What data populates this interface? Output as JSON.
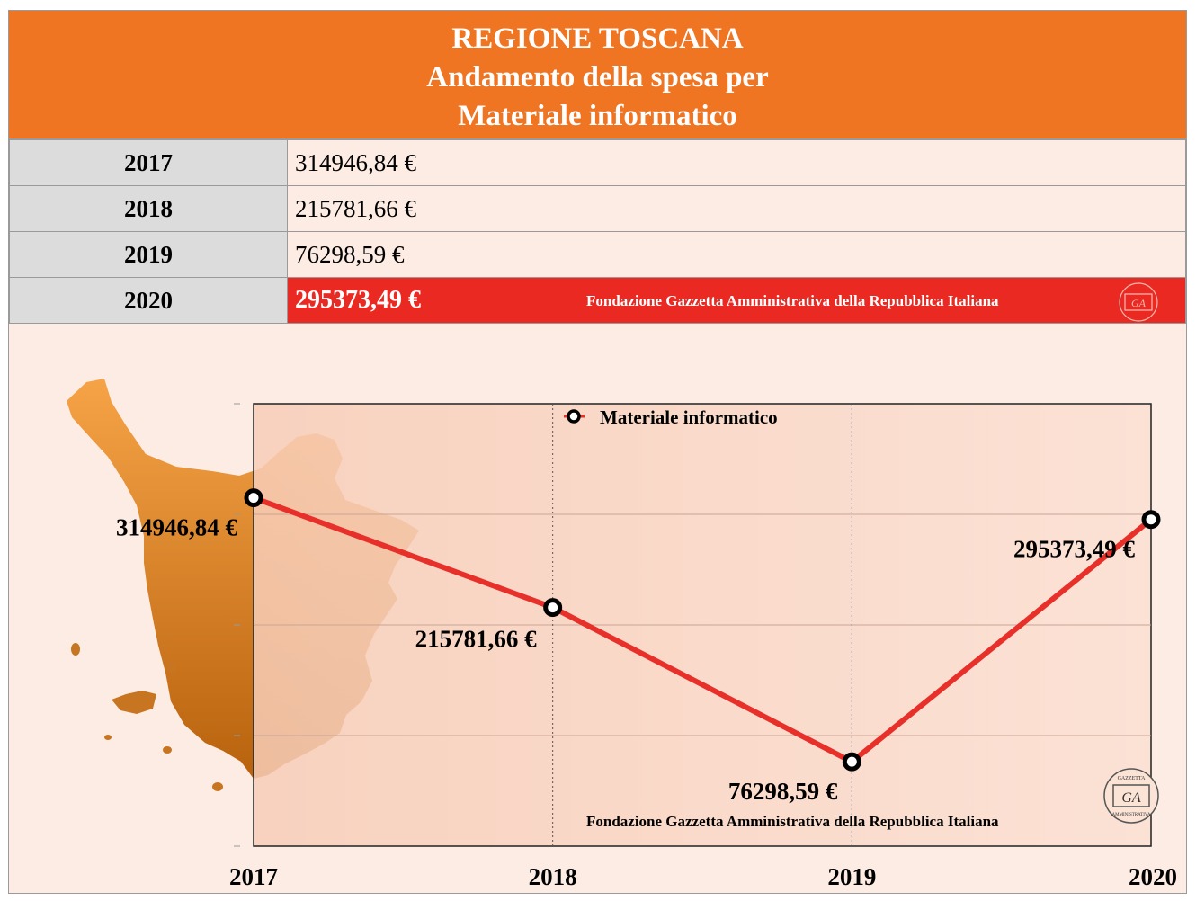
{
  "header": {
    "line1": "REGIONE TOSCANA",
    "line2": "Andamento della spesa per",
    "line3": "Materiale informatico"
  },
  "table": {
    "rows": [
      {
        "year": "2017",
        "value": "314946,84 €"
      },
      {
        "year": "2018",
        "value": "215781,66 €"
      },
      {
        "year": "2019",
        "value": "76298,59 €"
      },
      {
        "year": "2020",
        "value": "295373,49 €"
      }
    ],
    "footnote": "Fondazione Gazzetta Amministrativa della Repubblica Italiana"
  },
  "logo": {
    "top": "GAZZETTA",
    "mid": "GA",
    "bottom": "AMMINISTRATIVA"
  },
  "colors": {
    "header": "#ef7522",
    "line": "#e8302a",
    "highlight": "#ea2a22",
    "map": "#e8892e"
  },
  "chart_data": {
    "type": "line",
    "title": "",
    "categories": [
      "2017",
      "2018",
      "2019",
      "2020"
    ],
    "series": [
      {
        "name": "Materiale informatico",
        "values": [
          314946.84,
          215781.66,
          76298.59,
          295373.49
        ],
        "labels": [
          "314946,84 €",
          "215781,66 €",
          "76298,59 €",
          "295373,49 €"
        ]
      }
    ],
    "ylim": [
      0,
      400000
    ],
    "xlabel": "",
    "ylabel": "",
    "grid": true,
    "legend": "top",
    "footnote": "Fondazione Gazzetta Amministrativa della Repubblica Italiana"
  }
}
